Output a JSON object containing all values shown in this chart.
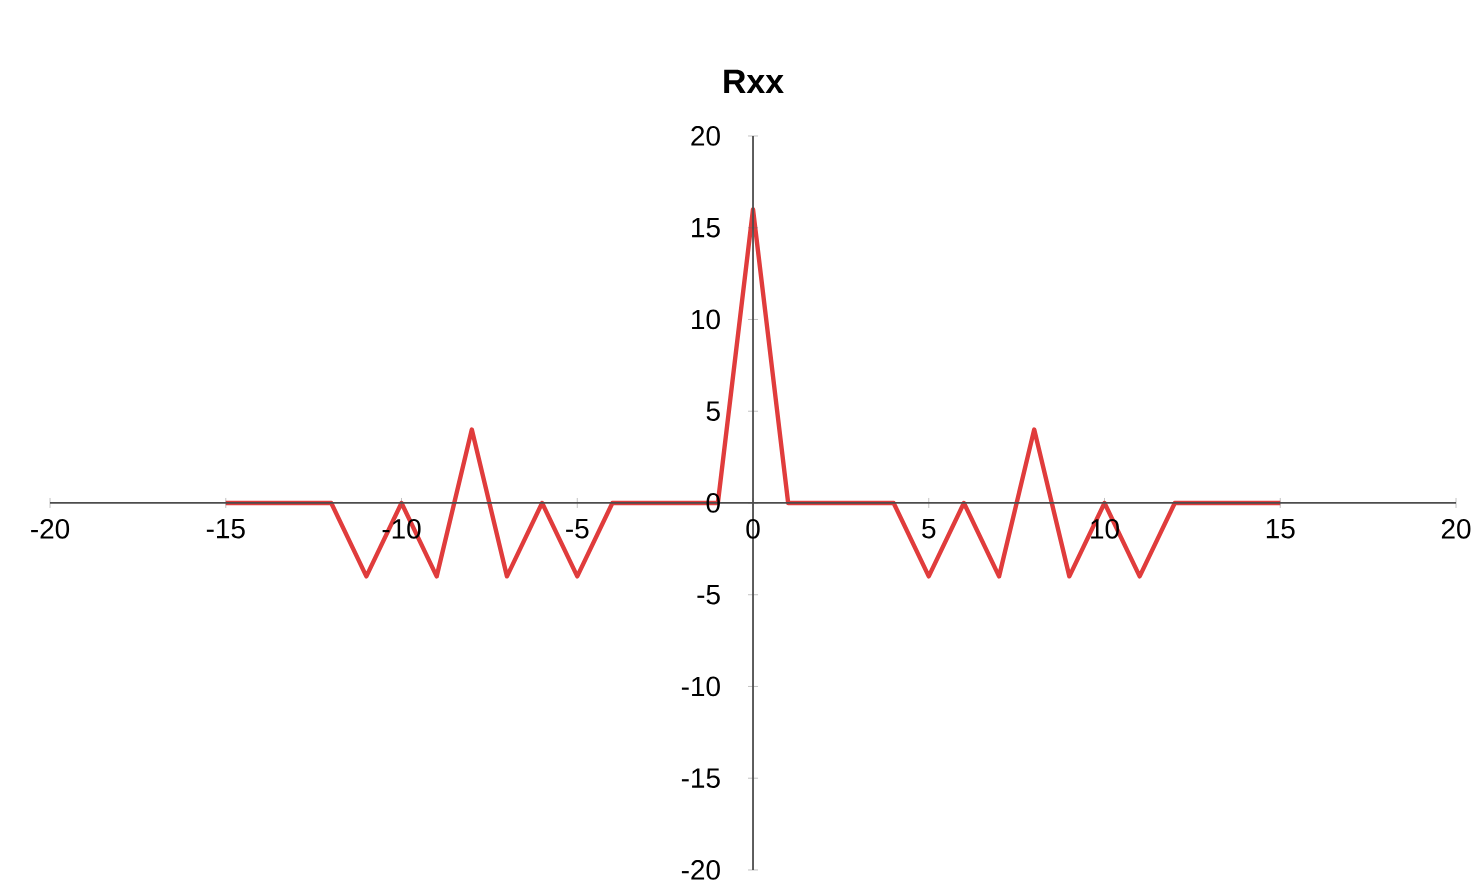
{
  "chart_data": {
    "type": "line",
    "title": "Rxx",
    "x": [
      -15,
      -14,
      -13,
      -12,
      -11,
      -10,
      -9,
      -8,
      -7,
      -6,
      -5,
      -4,
      -3,
      -2,
      -1,
      0,
      1,
      2,
      3,
      4,
      5,
      6,
      7,
      8,
      9,
      10,
      11,
      12,
      13,
      14,
      15
    ],
    "values": [
      0,
      0,
      0,
      0,
      -4,
      0,
      -4,
      4,
      -4,
      0,
      -4,
      0,
      0,
      0,
      0,
      16,
      0,
      0,
      0,
      0,
      -4,
      0,
      -4,
      4,
      -4,
      0,
      -4,
      0,
      0,
      0,
      0
    ],
    "color": "#e03c3c",
    "xlim": [
      -20,
      20
    ],
    "ylim": [
      -20,
      20
    ],
    "xticks": [
      -20,
      -15,
      -10,
      -5,
      0,
      5,
      10,
      15,
      20
    ],
    "yticks": [
      -20,
      -15,
      -10,
      -5,
      0,
      5,
      10,
      15,
      20
    ],
    "grid": false,
    "marker": "none",
    "line_style": "solid"
  }
}
